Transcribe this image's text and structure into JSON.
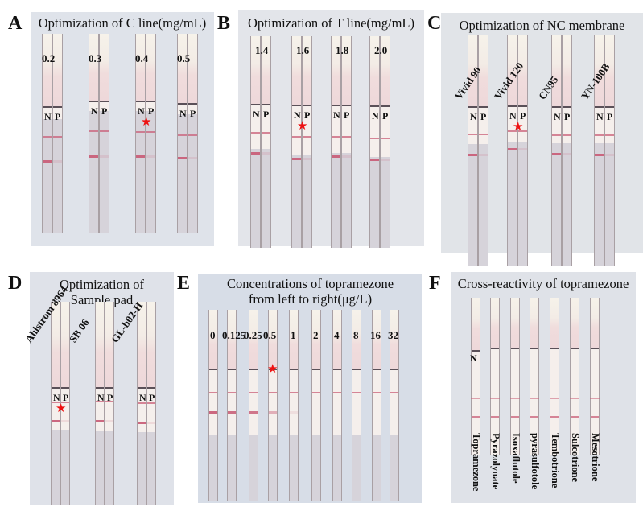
{
  "figure": {
    "colors": {
      "star": "#e11111",
      "test_line": "#c9607a",
      "background_ABD": "#dfe3ea",
      "background_E": "#d7dde7",
      "background_F": "#dfe2e8"
    },
    "panels": [
      {
        "letter": "A",
        "title": "Optimization of C line(mg/mL)",
        "groups": [
          {
            "label": "0.2",
            "n": "N",
            "p": "P",
            "selected": false
          },
          {
            "label": "0.3",
            "n": "N",
            "p": "P",
            "selected": false
          },
          {
            "label": "0.4",
            "n": "N",
            "p": "P",
            "selected": true
          },
          {
            "label": "0.5",
            "n": "N",
            "p": "P",
            "selected": false
          }
        ]
      },
      {
        "letter": "B",
        "title": "Optimization of T line(mg/mL)",
        "groups": [
          {
            "label": "1.4",
            "n": "N",
            "p": "P",
            "selected": false
          },
          {
            "label": "1.6",
            "n": "N",
            "p": "P",
            "selected": true
          },
          {
            "label": "1.8",
            "n": "N",
            "p": "P",
            "selected": false
          },
          {
            "label": "2.0",
            "n": "N",
            "p": "P",
            "selected": false
          }
        ]
      },
      {
        "letter": "C",
        "title": "Optimization of NC membrane",
        "groups": [
          {
            "label": "Vivid 90",
            "n": "N",
            "p": "P",
            "selected": false
          },
          {
            "label": "Vivid 120",
            "n": "N",
            "p": "P",
            "selected": true
          },
          {
            "label": "CN95",
            "n": "N",
            "p": "P",
            "selected": false
          },
          {
            "label": "YN-100B",
            "n": "N",
            "p": "P",
            "selected": false
          }
        ]
      },
      {
        "letter": "D",
        "title_line1": "Optimization of",
        "title_line2": "Sample pad",
        "groups": [
          {
            "label": "Ahlstrom 8964",
            "n": "N",
            "p": "P",
            "selected": true
          },
          {
            "label": "SB 06",
            "n": "N",
            "p": "P",
            "selected": false
          },
          {
            "label": "GL-b02-II",
            "n": "N",
            "p": "P",
            "selected": false
          }
        ]
      },
      {
        "letter": "E",
        "title_line1": "Concentrations of topramezone",
        "title_line2": "from left to right(μg/L)",
        "strips": [
          {
            "label": "0",
            "selected": false
          },
          {
            "label": "0.125",
            "selected": false
          },
          {
            "label": "0.25",
            "selected": false
          },
          {
            "label": "0.5",
            "selected": true
          },
          {
            "label": "1",
            "selected": false
          },
          {
            "label": "2",
            "selected": false
          },
          {
            "label": "4",
            "selected": false
          },
          {
            "label": "8",
            "selected": false
          },
          {
            "label": "16",
            "selected": false
          },
          {
            "label": "32",
            "selected": false
          }
        ]
      },
      {
        "letter": "F",
        "title": "Cross-reactivity of topramezone",
        "negative_label": "N",
        "strips": [
          {
            "label": "Topramezone"
          },
          {
            "label": "Pyrazolynate"
          },
          {
            "label": "Isoxaflutole"
          },
          {
            "label": "pyrasulfotole"
          },
          {
            "label": "Tembotrione"
          },
          {
            "label": "Sulcotrione"
          },
          {
            "label": "Mesotrione"
          }
        ]
      }
    ]
  }
}
